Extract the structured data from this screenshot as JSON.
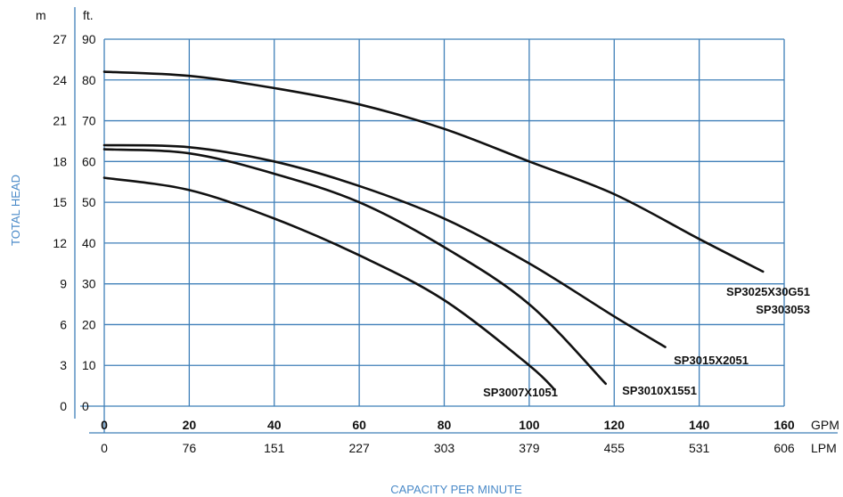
{
  "chart_data": {
    "type": "line",
    "colors": {
      "grid": "#3f7fb8",
      "curve": "#111111",
      "axis_title": "#4a8ac8"
    },
    "ylabel": "TOTAL HEAD",
    "xlabel": "CAPACITY PER MINUTE",
    "y_units": {
      "primary": "m",
      "secondary": "ft."
    },
    "x_units": {
      "primary": "GPM",
      "secondary": "LPM"
    },
    "xlim": [
      0,
      160
    ],
    "ylim": [
      0,
      90
    ],
    "x_ticks": [
      0,
      20,
      40,
      60,
      80,
      100,
      120,
      140,
      160
    ],
    "x_ticks_lpm": [
      "0",
      "76",
      "151",
      "227",
      "303",
      "379",
      "455",
      "531",
      "606"
    ],
    "y_ticks_ft": [
      0,
      10,
      20,
      30,
      40,
      50,
      60,
      70,
      80,
      90
    ],
    "y_ticks_m": [
      "0",
      "3",
      "6",
      "9",
      "12",
      "15",
      "18",
      "21",
      "24",
      "27"
    ],
    "grid": true,
    "series": [
      {
        "name": "SP3025X30G51\nSP303053",
        "x": [
          0,
          20,
          40,
          60,
          80,
          100,
          120,
          140,
          155
        ],
        "y": [
          82,
          81,
          78,
          74,
          68,
          60,
          52,
          41,
          33
        ]
      },
      {
        "name": "SP3015X2051",
        "x": [
          0,
          20,
          40,
          60,
          80,
          100,
          120,
          132
        ],
        "y": [
          64,
          63.5,
          60,
          54,
          46,
          35,
          22,
          14.5
        ]
      },
      {
        "name": "SP3010X1551",
        "x": [
          0,
          20,
          40,
          60,
          80,
          100,
          118
        ],
        "y": [
          63,
          62,
          57,
          50,
          39,
          25,
          5.5
        ]
      },
      {
        "name": "SP3007X1051",
        "x": [
          0,
          20,
          40,
          60,
          80,
          100,
          106
        ],
        "y": [
          56,
          53,
          46,
          37,
          26,
          10,
          4
        ]
      }
    ]
  }
}
